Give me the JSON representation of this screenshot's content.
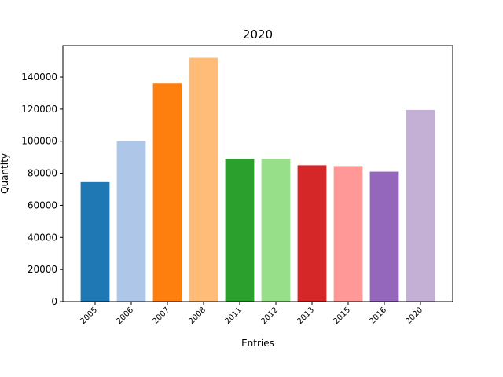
{
  "chart_data": {
    "type": "bar",
    "title": "2020",
    "xlabel": "Entries",
    "ylabel": "Quantity",
    "categories": [
      "2005",
      "2006",
      "2007",
      "2008",
      "2011",
      "2012",
      "2013",
      "2015",
      "2016",
      "2020"
    ],
    "values": [
      74500,
      100000,
      136000,
      152000,
      89000,
      89000,
      85000,
      84500,
      81000,
      119500
    ],
    "colors": [
      "#1f77b4",
      "#aec7e8",
      "#ff7f0e",
      "#ffbb78",
      "#2ca02c",
      "#98df8a",
      "#d62728",
      "#ff9896",
      "#9467bd",
      "#c5b0d5"
    ],
    "ylim": [
      0,
      159600
    ],
    "yticks": [
      0,
      20000,
      40000,
      60000,
      80000,
      100000,
      120000,
      140000
    ],
    "grid": false,
    "legend": "none"
  }
}
